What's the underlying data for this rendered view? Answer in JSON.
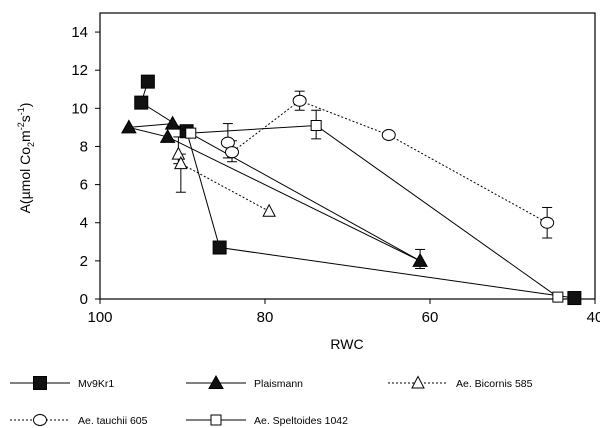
{
  "chart_data": {
    "type": "scatter",
    "xlabel": "RWC",
    "ylabel": {
      "main": "A(µmol Co",
      "sub": "2",
      "mid": "m",
      "sup1": "-2",
      "mid2": "s",
      "sup2": "-1",
      "end": ")"
    },
    "xlim": [
      100,
      40
    ],
    "ylim": [
      0,
      15
    ],
    "xticks": [
      100,
      80,
      60,
      40
    ],
    "yticks": [
      0,
      2,
      4,
      6,
      8,
      10,
      12,
      14
    ],
    "grid": false,
    "legend_position": "bottom",
    "series": [
      {
        "name": "Mv9Kr1",
        "marker": "square-filled",
        "line": "solid",
        "points": [
          [
            95,
            10.3
          ],
          [
            94.2,
            11.4
          ]
        ],
        "points_2": [
          [
            89.5,
            8.8
          ],
          [
            85.5,
            2.7
          ],
          [
            42.5,
            0.05
          ]
        ],
        "link": [
          [
            95,
            10.3
          ],
          [
            89.5,
            8.8
          ]
        ],
        "errors": []
      },
      {
        "name": "Plaismann",
        "marker": "triangle-filled",
        "line": "solid",
        "points": [
          [
            96.5,
            9.0
          ],
          [
            91.2,
            9.2
          ],
          [
            61.2,
            2.0
          ]
        ],
        "extra": [
          [
            91.8,
            8.5
          ]
        ],
        "errors": [
          [
            61.2,
            1.6,
            2.6
          ]
        ]
      },
      {
        "name": "Ae. Bicornis 585",
        "marker": "triangle-open",
        "line": "dotted",
        "points": [
          [
            90.5,
            7.6
          ],
          [
            90.2,
            7.1
          ],
          [
            79.5,
            4.6
          ]
        ],
        "errors": [
          [
            90.2,
            5.6,
            7.6
          ],
          [
            90.5,
            7.1,
            8.5
          ]
        ]
      },
      {
        "name": "Ae. tauchii 605",
        "marker": "circle-open",
        "line": "dotted",
        "points": [
          [
            84.5,
            8.2
          ],
          [
            84,
            7.7
          ],
          [
            75.8,
            10.4
          ],
          [
            65,
            8.6
          ],
          [
            45.8,
            4.0
          ]
        ],
        "errors": [
          [
            84.5,
            7.4,
            9.2
          ],
          [
            84,
            7.2,
            8.3
          ],
          [
            75.8,
            9.9,
            10.9
          ],
          [
            45.8,
            3.2,
            4.8
          ]
        ]
      },
      {
        "name": "Ae. Speltoides 1042",
        "marker": "square-open",
        "line": "solid",
        "points": [
          [
            89,
            8.7
          ],
          [
            73.8,
            9.1
          ],
          [
            44.5,
            0.1
          ]
        ],
        "errors": [
          [
            73.8,
            8.4,
            9.9
          ]
        ]
      }
    ]
  }
}
